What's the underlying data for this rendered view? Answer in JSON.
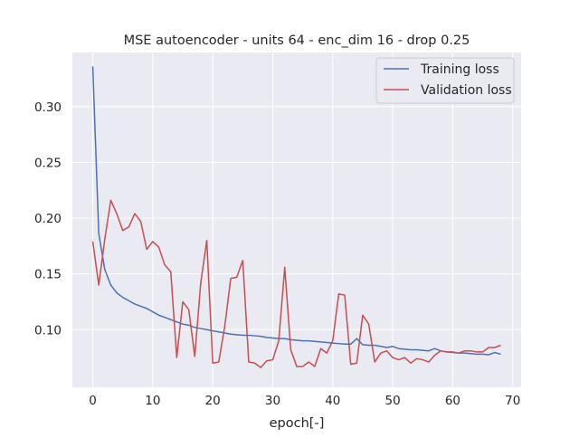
{
  "chart_data": {
    "type": "line",
    "title": "MSE autoencoder - units 64 - enc_dim 16 - drop 0.25",
    "xlabel": "epoch[-]",
    "ylabel": "",
    "xlim": [
      -3.4,
      71.4
    ],
    "ylim": [
      0.0483,
      0.3485
    ],
    "xticks": [
      0,
      10,
      20,
      30,
      40,
      50,
      60,
      70
    ],
    "yticks": [
      0.1,
      0.15,
      0.2,
      0.25,
      0.3
    ],
    "ytick_labels": [
      "0.10",
      "0.15",
      "0.20",
      "0.25",
      "0.30"
    ],
    "grid": true,
    "legend": "upper right",
    "style": {
      "background": "#eaeaf2",
      "grid_color": "#ffffff"
    },
    "x": [
      0,
      1,
      2,
      3,
      4,
      5,
      6,
      7,
      8,
      9,
      10,
      11,
      12,
      13,
      14,
      15,
      16,
      17,
      18,
      19,
      20,
      21,
      22,
      23,
      24,
      25,
      26,
      27,
      28,
      29,
      30,
      31,
      32,
      33,
      34,
      35,
      36,
      37,
      38,
      39,
      40,
      41,
      42,
      43,
      44,
      45,
      46,
      47,
      48,
      49,
      50,
      51,
      52,
      53,
      54,
      55,
      56,
      57,
      58,
      59,
      60,
      61,
      62,
      63,
      64,
      65,
      66,
      67,
      68
    ],
    "series": [
      {
        "name": "Training loss",
        "color": "#4c72b0",
        "values": [
          0.336,
          0.186,
          0.154,
          0.14,
          0.133,
          0.129,
          0.126,
          0.123,
          0.121,
          0.119,
          0.116,
          0.113,
          0.111,
          0.109,
          0.107,
          0.105,
          0.104,
          0.102,
          0.101,
          0.1,
          0.099,
          0.098,
          0.097,
          0.096,
          0.0955,
          0.095,
          0.095,
          0.0945,
          0.094,
          0.093,
          0.0925,
          0.092,
          0.092,
          0.091,
          0.0905,
          0.09,
          0.09,
          0.0895,
          0.089,
          0.0885,
          0.088,
          0.0875,
          0.087,
          0.087,
          0.092,
          0.0865,
          0.086,
          0.086,
          0.085,
          0.084,
          0.085,
          0.083,
          0.0825,
          0.082,
          0.082,
          0.0815,
          0.081,
          0.083,
          0.081,
          0.08,
          0.0795,
          0.079,
          0.079,
          0.0785,
          0.078,
          0.078,
          0.0775,
          0.0795,
          0.078
        ]
      },
      {
        "name": "Validation loss",
        "color": "#c44e52",
        "values": [
          0.179,
          0.14,
          0.181,
          0.216,
          0.204,
          0.189,
          0.192,
          0.204,
          0.197,
          0.172,
          0.179,
          0.174,
          0.158,
          0.152,
          0.075,
          0.125,
          0.118,
          0.076,
          0.142,
          0.18,
          0.07,
          0.071,
          0.103,
          0.146,
          0.147,
          0.162,
          0.071,
          0.07,
          0.066,
          0.072,
          0.073,
          0.09,
          0.156,
          0.082,
          0.067,
          0.067,
          0.071,
          0.067,
          0.083,
          0.079,
          0.09,
          0.132,
          0.131,
          0.069,
          0.07,
          0.113,
          0.105,
          0.071,
          0.079,
          0.081,
          0.075,
          0.073,
          0.075,
          0.07,
          0.074,
          0.073,
          0.071,
          0.077,
          0.081,
          0.08,
          0.08,
          0.079,
          0.081,
          0.081,
          0.08,
          0.08,
          0.084,
          0.084,
          0.086
        ]
      }
    ]
  }
}
